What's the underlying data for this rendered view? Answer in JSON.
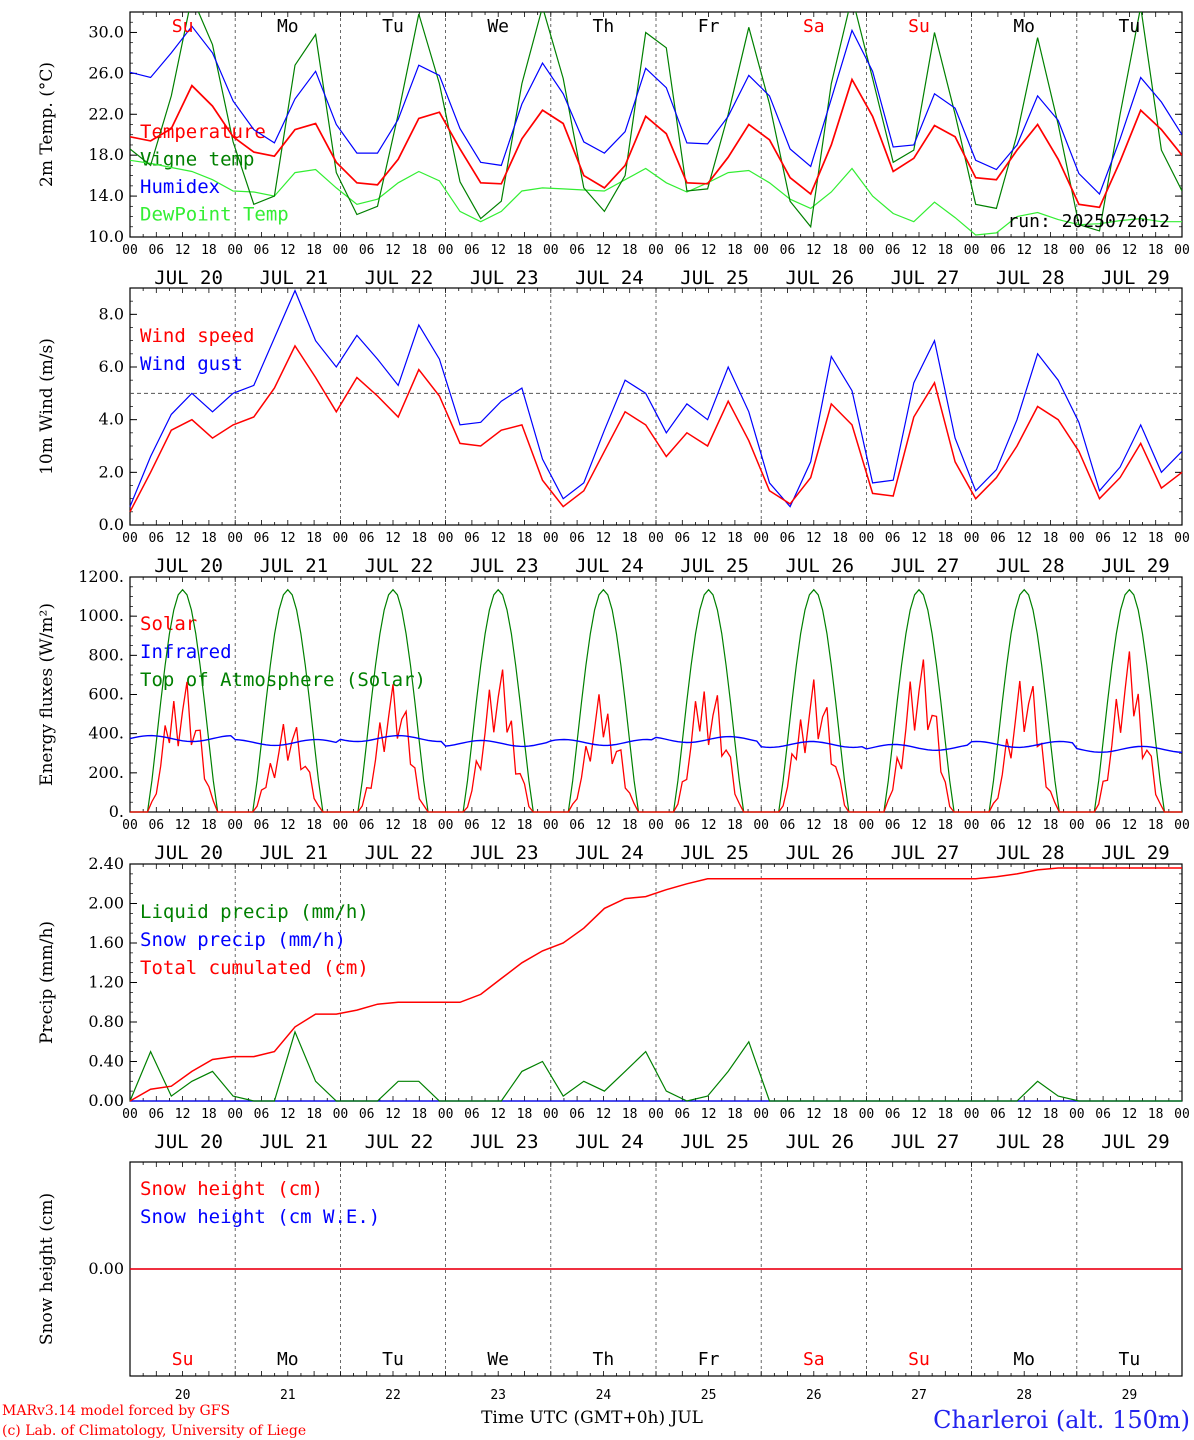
{
  "footer": {
    "model": "MARv3.14 model forced by GFS",
    "copyright": "(c) Lab. of Climatology, University of Liege",
    "xlabel": "Time UTC (GMT+0h) JUL",
    "station": "Charleroi (alt. 150m)"
  },
  "colors": {
    "red": "#ff0000",
    "green": "#008000",
    "blue": "#0000ff",
    "lightgreen": "#33ee33"
  },
  "chart_data": [
    {
      "type": "line",
      "ylabel": "2m Temp. (°C)",
      "ylim": [
        10,
        32
      ],
      "yticks": [
        "10.0",
        "14.0",
        "18.0",
        "22.0",
        "26.0",
        "30.0"
      ],
      "day_names": [
        "Su",
        "Mo",
        "Tu",
        "We",
        "Th",
        "Fr",
        "Sa",
        "Su",
        "Mo",
        "Tu"
      ],
      "day_labels": [
        "JUL 20",
        "JUL 21",
        "JUL 22",
        "JUL 23",
        "JUL 24",
        "JUL 25",
        "JUL 26",
        "JUL 27",
        "JUL 28",
        "JUL 29"
      ],
      "hour_ticks": [
        "00",
        "06",
        "12",
        "18"
      ],
      "annotation": "run: 2025072012",
      "legend": [
        "Temperature",
        "Vigne temp",
        "Humidex",
        "DewPoint Temp"
      ],
      "series": [
        {
          "name": "Temperature",
          "color": "red",
          "values": [
            19.8,
            19.4,
            20.6,
            24.8,
            22.8,
            19.8,
            18.3,
            17.9,
            20.5,
            21.1,
            17.3,
            15.3,
            15.1,
            17.6,
            21.6,
            22.2,
            18.6,
            15.3,
            15.2,
            19.6,
            22.4,
            21.1,
            16.0,
            14.8,
            17.0,
            21.8,
            20.1,
            15.3,
            15.2,
            17.8,
            21.0,
            19.5,
            15.8,
            14.2,
            19.0,
            25.4,
            21.8,
            16.4,
            17.7,
            20.9,
            19.8,
            15.8,
            15.6,
            18.5,
            21.0,
            17.6,
            13.2,
            12.9,
            17.4,
            22.4,
            20.5,
            18.0
          ]
        },
        {
          "name": "Vigne temp",
          "color": "green",
          "values": [
            18.6,
            17.0,
            23.8,
            33.5,
            28.8,
            19.3,
            13.2,
            14.0,
            26.8,
            29.8,
            16.3,
            12.2,
            13.0,
            22.0,
            31.8,
            25.0,
            15.4,
            11.8,
            13.5,
            25.0,
            32.5,
            25.5,
            14.8,
            12.5,
            16.0,
            30.0,
            28.5,
            14.5,
            14.7,
            22.0,
            30.5,
            23.0,
            13.5,
            11.0,
            25.0,
            33.5,
            25.5,
            17.3,
            18.5,
            30.0,
            22.0,
            13.2,
            12.8,
            20.0,
            29.5,
            21.0,
            11.2,
            10.6,
            22.0,
            32.5,
            18.5,
            14.5
          ]
        },
        {
          "name": "Humidex",
          "color": "blue",
          "values": [
            26.1,
            25.6,
            28.0,
            30.6,
            28.0,
            23.3,
            20.5,
            19.2,
            23.5,
            26.2,
            21.0,
            18.2,
            18.2,
            21.5,
            26.8,
            25.8,
            20.6,
            17.3,
            17.0,
            23.0,
            27.0,
            24.0,
            19.3,
            18.2,
            20.3,
            26.5,
            24.6,
            19.2,
            19.1,
            21.8,
            25.8,
            23.8,
            18.6,
            16.9,
            23.5,
            30.2,
            26.2,
            18.8,
            19.0,
            24.0,
            22.6,
            17.5,
            16.6,
            19.0,
            23.8,
            21.4,
            16.2,
            14.2,
            19.6,
            25.6,
            23.2,
            20.0
          ]
        },
        {
          "name": "DewPoint Temp",
          "color": "lightgreen",
          "values": [
            17.5,
            17.2,
            16.8,
            16.4,
            15.6,
            14.5,
            14.4,
            14.0,
            16.3,
            16.6,
            14.8,
            13.2,
            13.7,
            15.3,
            16.4,
            15.5,
            12.5,
            11.5,
            12.5,
            14.5,
            14.8,
            14.7,
            14.6,
            14.5,
            15.6,
            16.7,
            15.3,
            14.4,
            15.3,
            16.3,
            16.5,
            15.3,
            13.7,
            12.8,
            14.4,
            16.7,
            14.0,
            12.3,
            11.5,
            13.4,
            11.9,
            10.2,
            10.4,
            12.0,
            12.4,
            11.7,
            11.2,
            11.3,
            11.6,
            11.8,
            11.5,
            11.5
          ]
        }
      ]
    },
    {
      "type": "line",
      "ylabel": "10m Wind (m/s)",
      "ylim": [
        0,
        9
      ],
      "yticks": [
        "0.0",
        "2.0",
        "4.0",
        "6.0",
        "8.0"
      ],
      "reference_line": 5,
      "day_labels": [
        "JUL 20",
        "JUL 21",
        "JUL 22",
        "JUL 23",
        "JUL 24",
        "JUL 25",
        "JUL 26",
        "JUL 27",
        "JUL 28",
        "JUL 29"
      ],
      "legend": [
        "Wind speed",
        "Wind gust"
      ],
      "series": [
        {
          "name": "Wind speed",
          "color": "red",
          "values": [
            0.5,
            2.0,
            3.6,
            4.0,
            3.3,
            3.8,
            4.1,
            5.2,
            6.8,
            5.6,
            4.3,
            5.6,
            4.9,
            4.1,
            5.9,
            4.9,
            3.1,
            3.0,
            3.6,
            3.8,
            1.7,
            0.7,
            1.3,
            2.8,
            4.3,
            3.8,
            2.6,
            3.5,
            3.0,
            4.7,
            3.2,
            1.3,
            0.8,
            1.8,
            4.6,
            3.8,
            1.2,
            1.1,
            4.1,
            5.4,
            2.4,
            1.0,
            1.8,
            3.0,
            4.5,
            4.0,
            2.8,
            1.0,
            1.8,
            3.1,
            1.4,
            2.0
          ]
        },
        {
          "name": "Wind gust",
          "color": "blue",
          "values": [
            0.7,
            2.6,
            4.2,
            5.0,
            4.3,
            5.0,
            5.3,
            7.1,
            8.9,
            7.0,
            6.0,
            7.2,
            6.3,
            5.3,
            7.6,
            6.3,
            3.8,
            3.9,
            4.7,
            5.2,
            2.5,
            1.0,
            1.6,
            3.6,
            5.5,
            5.0,
            3.5,
            4.6,
            4.0,
            6.0,
            4.3,
            1.6,
            0.7,
            2.4,
            6.4,
            5.1,
            1.6,
            1.7,
            5.4,
            7.0,
            3.3,
            1.3,
            2.1,
            4.0,
            6.5,
            5.5,
            3.9,
            1.3,
            2.2,
            3.8,
            2.0,
            2.8
          ]
        }
      ]
    },
    {
      "type": "line",
      "ylabel": "Energy fluxes (W/m²)",
      "ylim": [
        0,
        1200
      ],
      "yticks": [
        "0.",
        "200.",
        "400.",
        "600.",
        "800.",
        "1000.",
        "1200."
      ],
      "day_labels": [
        "JUL 20",
        "JUL 21",
        "JUL 22",
        "JUL 23",
        "JUL 24",
        "JUL 25",
        "JUL 26",
        "JUL 27",
        "JUL 28",
        "JUL 29"
      ],
      "legend": [
        "Solar",
        "Infrared",
        "Top of Atmosphere (Solar)"
      ],
      "toa_peak": 1135,
      "solar_daily_max": [
        770,
        520,
        690,
        750,
        620,
        760,
        760,
        850,
        730,
        820
      ],
      "infrared_daily_mean": [
        375,
        355,
        375,
        350,
        355,
        370,
        345,
        330,
        345,
        320
      ],
      "series": [
        {
          "name": "Solar",
          "color": "red"
        },
        {
          "name": "Infrared",
          "color": "blue"
        },
        {
          "name": "Top of Atmosphere (Solar)",
          "color": "green"
        }
      ]
    },
    {
      "type": "line",
      "ylabel": "Precip (mm/h)",
      "ylim": [
        0,
        2.4
      ],
      "yticks": [
        "0.00",
        "0.40",
        "0.80",
        "1.20",
        "1.60",
        "2.00",
        "2.40"
      ],
      "day_labels": [
        "JUL 20",
        "JUL 21",
        "JUL 22",
        "JUL 23",
        "JUL 24",
        "JUL 25",
        "JUL 26",
        "JUL 27",
        "JUL 28",
        "JUL 29"
      ],
      "legend": [
        "Liquid precip (mm/h)",
        "Snow precip (mm/h)",
        "Total cumulated (cm)"
      ],
      "series": [
        {
          "name": "Liquid precip (mm/h)",
          "color": "green",
          "values": [
            0.0,
            0.5,
            0.05,
            0.2,
            0.3,
            0.05,
            0.0,
            0.0,
            0.7,
            0.2,
            0.0,
            0.0,
            0.0,
            0.2,
            0.2,
            0.0,
            0.0,
            0.0,
            0.0,
            0.3,
            0.4,
            0.05,
            0.2,
            0.1,
            0.3,
            0.5,
            0.1,
            0.0,
            0.05,
            0.3,
            0.6,
            0.0,
            0.0,
            0.0,
            0.0,
            0.0,
            0.0,
            0.0,
            0.0,
            0.0,
            0.0,
            0.0,
            0.0,
            0.0,
            0.2,
            0.05,
            0.0,
            0.0,
            0.0,
            0.0,
            0.0,
            0.0
          ]
        },
        {
          "name": "Snow precip (mm/h)",
          "color": "blue",
          "values": [
            0,
            0
          ]
        },
        {
          "name": "Total cumulated (cm)",
          "color": "red",
          "values": [
            0.0,
            0.12,
            0.15,
            0.3,
            0.42,
            0.45,
            0.45,
            0.5,
            0.75,
            0.88,
            0.88,
            0.92,
            0.98,
            1.0,
            1.0,
            1.0,
            1.0,
            1.08,
            1.24,
            1.4,
            1.52,
            1.6,
            1.75,
            1.95,
            2.05,
            2.07,
            2.14,
            2.2,
            2.25,
            2.25,
            2.25,
            2.25,
            2.25,
            2.25,
            2.25,
            2.25,
            2.25,
            2.25,
            2.25,
            2.25,
            2.25,
            2.25,
            2.27,
            2.3,
            2.34,
            2.36,
            2.36,
            2.36,
            2.36,
            2.36,
            2.36,
            2.36
          ]
        }
      ]
    },
    {
      "type": "line",
      "ylabel": "Snow height (cm)",
      "yticks": [
        "0.00"
      ],
      "legend": [
        "Snow height (cm)",
        "Snow height (cm W.E.)"
      ],
      "day_names": [
        "Su",
        "Mo",
        "Tu",
        "We",
        "Th",
        "Fr",
        "Sa",
        "Su",
        "Mo",
        "Tu"
      ],
      "day_numbers": [
        "20",
        "21",
        "22",
        "23",
        "24",
        "25",
        "26",
        "27",
        "28",
        "29"
      ],
      "series": [
        {
          "name": "Snow height (cm)",
          "color": "red",
          "values": [
            0,
            0
          ]
        },
        {
          "name": "Snow height (cm W.E.)",
          "color": "blue",
          "values": [
            0,
            0
          ]
        }
      ]
    }
  ]
}
